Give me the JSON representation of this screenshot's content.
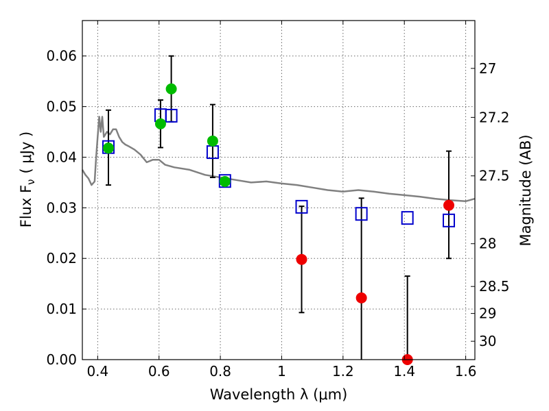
{
  "chart_data": {
    "type": "scatter",
    "xlabel": "Wavelength  λ (μm)",
    "ylabel": "Flux  F",
    "ylabel_sub": "ν",
    "ylabel_unit": "( μJy )",
    "ylabel_right": "Magnitude (AB)",
    "xlim": [
      0.35,
      1.63
    ],
    "ylim": [
      0.0,
      0.067
    ],
    "grid": true,
    "x_ticks": [
      {
        "value": 0.4,
        "label": "0.4"
      },
      {
        "value": 0.6,
        "label": "0.6"
      },
      {
        "value": 0.8,
        "label": "0.8"
      },
      {
        "value": 1.0,
        "label": "1"
      },
      {
        "value": 1.2,
        "label": "1.2"
      },
      {
        "value": 1.4,
        "label": "1.4"
      },
      {
        "value": 1.6,
        "label": "1.6"
      }
    ],
    "y_ticks": [
      {
        "value": 0.0,
        "label": "0.00"
      },
      {
        "value": 0.01,
        "label": "0.01"
      },
      {
        "value": 0.02,
        "label": "0.02"
      },
      {
        "value": 0.03,
        "label": "0.03"
      },
      {
        "value": 0.04,
        "label": "0.04"
      },
      {
        "value": 0.05,
        "label": "0.05"
      },
      {
        "value": 0.06,
        "label": "0.06"
      }
    ],
    "mag_ticks": [
      {
        "value": 27.0,
        "label": "27"
      },
      {
        "value": 27.2,
        "label": "27.2"
      },
      {
        "value": 27.5,
        "label": "27.5"
      },
      {
        "value": 28.0,
        "label": "28"
      },
      {
        "value": 28.5,
        "label": "28.5"
      },
      {
        "value": 29.0,
        "label": "29"
      },
      {
        "value": 30.0,
        "label": "30"
      }
    ],
    "series": [
      {
        "marker": "line",
        "color": "#808080",
        "x": [
          0.35,
          0.36,
          0.37,
          0.38,
          0.39,
          0.395,
          0.4,
          0.405,
          0.41,
          0.415,
          0.42,
          0.43,
          0.44,
          0.45,
          0.46,
          0.47,
          0.48,
          0.49,
          0.5,
          0.52,
          0.54,
          0.56,
          0.58,
          0.6,
          0.62,
          0.65,
          0.7,
          0.75,
          0.8,
          0.85,
          0.9,
          0.95,
          1.0,
          1.05,
          1.1,
          1.15,
          1.2,
          1.25,
          1.3,
          1.35,
          1.4,
          1.45,
          1.5,
          1.55,
          1.6,
          1.63
        ],
        "y": [
          0.0375,
          0.0365,
          0.0358,
          0.0345,
          0.0352,
          0.04,
          0.044,
          0.048,
          0.045,
          0.048,
          0.044,
          0.045,
          0.0445,
          0.0455,
          0.0455,
          0.044,
          0.043,
          0.0425,
          0.0422,
          0.0415,
          0.0405,
          0.039,
          0.0395,
          0.0395,
          0.0385,
          0.038,
          0.0375,
          0.0365,
          0.036,
          0.0355,
          0.035,
          0.0352,
          0.0348,
          0.0345,
          0.034,
          0.0335,
          0.0332,
          0.0335,
          0.0332,
          0.0328,
          0.0325,
          0.0322,
          0.0318,
          0.0315,
          0.0313,
          0.0318
        ]
      },
      {
        "marker": "open-square",
        "color": "#0000cc",
        "x": [
          0.435,
          0.605,
          0.64,
          0.775,
          0.815,
          1.065,
          1.26,
          1.41,
          1.545
        ],
        "y": [
          0.042,
          0.0483,
          0.0482,
          0.041,
          0.0353,
          0.0302,
          0.0288,
          0.028,
          0.0275
        ]
      },
      {
        "marker": "filled-circle",
        "color": "#00bb00",
        "x": [
          0.435,
          0.605,
          0.64,
          0.775,
          0.815
        ],
        "y": [
          0.0418,
          0.0466,
          0.0535,
          0.0432,
          0.0352
        ],
        "yerr_low": [
          0.0073,
          0.0047,
          0.0065,
          0.0072,
          0.0
        ],
        "yerr_high": [
          0.0075,
          0.0047,
          0.0065,
          0.0072,
          0.0
        ]
      },
      {
        "marker": "filled-circle",
        "color": "#ee0000",
        "x": [
          1.065,
          1.26,
          1.41,
          1.545
        ],
        "y": [
          0.0198,
          0.0122,
          0.0,
          0.0305
        ],
        "yerr_low": [
          0.0105,
          0.0125,
          0.0,
          0.0105
        ],
        "yerr_high": [
          0.0105,
          0.0197,
          0.0165,
          0.0107
        ]
      }
    ]
  }
}
